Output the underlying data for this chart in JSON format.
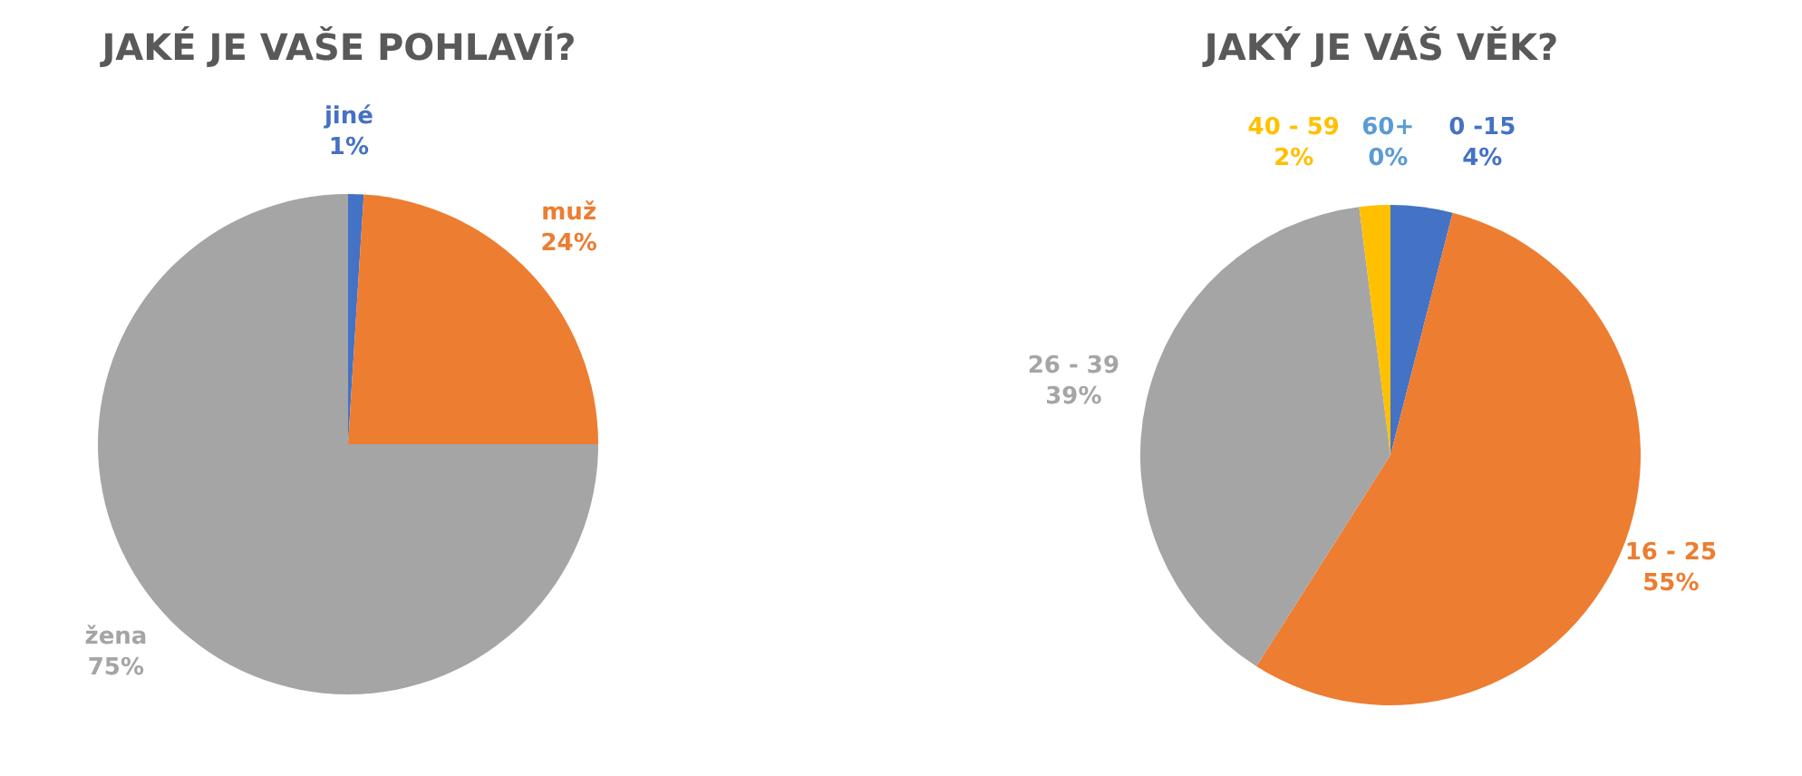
{
  "chart_data": [
    {
      "type": "pie",
      "title": "JAKÉ JE VAŠE POHLAVÍ?",
      "categories": [
        "jiné",
        "muž",
        "žena"
      ],
      "values": [
        1,
        24,
        75
      ],
      "colors": [
        "#4472c4",
        "#ed7d31",
        "#a5a5a5"
      ],
      "value_labels": [
        "1%",
        "24%",
        "75%"
      ],
      "legend": false
    },
    {
      "type": "pie",
      "title": "JAKÝ JE VÁŠ VĚK?",
      "categories": [
        "0 -15",
        "16 - 25",
        "26 - 39",
        "40 - 59",
        "60+"
      ],
      "values": [
        4,
        55,
        39,
        2,
        0
      ],
      "colors": [
        "#4472c4",
        "#ed7d31",
        "#a5a5a5",
        "#ffc000",
        "#5b9bd5"
      ],
      "value_labels": [
        "4%",
        "55%",
        "39%",
        "2%",
        "0%"
      ],
      "legend": false
    }
  ]
}
